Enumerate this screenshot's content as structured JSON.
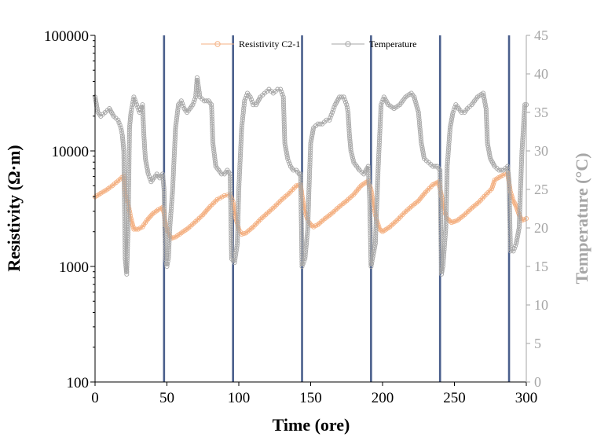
{
  "chart_data": {
    "type": "line",
    "title": "",
    "xlabel": "Time (ore)",
    "ylabel": "Resistivity (Ω·m)",
    "y2label": "Temperature (°C)",
    "xlim": [
      0,
      300
    ],
    "ylim": [
      100,
      100000
    ],
    "y2lim": [
      0,
      45
    ],
    "yscale": "log",
    "grid": false,
    "legend_position": "top-center",
    "x_ticks": [
      0,
      50,
      100,
      150,
      200,
      250,
      300
    ],
    "x_tick_labels": [
      "0",
      "50",
      "100",
      "150",
      "200",
      "250",
      "300"
    ],
    "y_ticks": [
      100,
      1000,
      10000,
      100000
    ],
    "y_tick_labels": [
      "100",
      "1000",
      "10000",
      "100000"
    ],
    "y2_ticks": [
      0,
      5,
      10,
      15,
      20,
      25,
      30,
      35,
      40,
      45
    ],
    "y2_tick_labels": [
      "0",
      "5",
      "10",
      "15",
      "20",
      "25",
      "30",
      "35",
      "40",
      "45"
    ],
    "vertical_lines": [
      {
        "x": 48,
        "color": "#4a5f8c"
      },
      {
        "x": 96,
        "color": "#4a5f8c"
      },
      {
        "x": 144,
        "color": "#4a5f8c"
      },
      {
        "x": 192,
        "color": "#4a5f8c"
      },
      {
        "x": 240,
        "color": "#4a5f8c"
      },
      {
        "x": 288,
        "color": "#4a5f8c"
      }
    ],
    "series": [
      {
        "name": "Resistivity C2-1",
        "axis": "left",
        "color": "#f4b183",
        "points": [
          [
            0,
            4000
          ],
          [
            4,
            4300
          ],
          [
            8,
            4600
          ],
          [
            12,
            5000
          ],
          [
            16,
            5500
          ],
          [
            20,
            6100
          ],
          [
            21,
            4200
          ],
          [
            23,
            3500
          ],
          [
            25,
            2600
          ],
          [
            27,
            2100
          ],
          [
            30,
            2100
          ],
          [
            33,
            2200
          ],
          [
            36,
            2500
          ],
          [
            40,
            2850
          ],
          [
            44,
            3100
          ],
          [
            47,
            3250
          ],
          [
            48,
            2900
          ],
          [
            49,
            2300
          ],
          [
            51,
            1950
          ],
          [
            53,
            1750
          ],
          [
            56,
            1800
          ],
          [
            60,
            1950
          ],
          [
            65,
            2150
          ],
          [
            70,
            2450
          ],
          [
            75,
            2800
          ],
          [
            80,
            3300
          ],
          [
            85,
            3800
          ],
          [
            90,
            4100
          ],
          [
            94,
            4200
          ],
          [
            96,
            3600
          ],
          [
            98,
            2600
          ],
          [
            100,
            2100
          ],
          [
            102,
            1900
          ],
          [
            105,
            1950
          ],
          [
            110,
            2200
          ],
          [
            115,
            2550
          ],
          [
            120,
            2900
          ],
          [
            125,
            3300
          ],
          [
            130,
            3800
          ],
          [
            135,
            4300
          ],
          [
            140,
            5000
          ],
          [
            143,
            5100
          ],
          [
            144,
            4100
          ],
          [
            146,
            3000
          ],
          [
            148,
            2500
          ],
          [
            150,
            2300
          ],
          [
            152,
            2200
          ],
          [
            155,
            2300
          ],
          [
            160,
            2600
          ],
          [
            165,
            2900
          ],
          [
            170,
            3300
          ],
          [
            175,
            3700
          ],
          [
            180,
            4200
          ],
          [
            185,
            5000
          ],
          [
            190,
            5500
          ],
          [
            192,
            4600
          ],
          [
            194,
            3200
          ],
          [
            196,
            2500
          ],
          [
            198,
            2100
          ],
          [
            200,
            2000
          ],
          [
            205,
            2200
          ],
          [
            210,
            2500
          ],
          [
            215,
            2900
          ],
          [
            220,
            3300
          ],
          [
            225,
            3700
          ],
          [
            230,
            4400
          ],
          [
            235,
            5100
          ],
          [
            239,
            5400
          ],
          [
            241,
            4100
          ],
          [
            243,
            3000
          ],
          [
            245,
            2600
          ],
          [
            248,
            2400
          ],
          [
            252,
            2500
          ],
          [
            257,
            2800
          ],
          [
            262,
            3200
          ],
          [
            267,
            3600
          ],
          [
            272,
            4200
          ],
          [
            276,
            4700
          ],
          [
            278,
            5600
          ],
          [
            282,
            6000
          ],
          [
            285,
            6300
          ],
          [
            287,
            6400
          ],
          [
            289,
            4400
          ],
          [
            291,
            3700
          ],
          [
            293,
            3300
          ],
          [
            295,
            2800
          ],
          [
            297,
            2500
          ],
          [
            300,
            2600
          ]
        ]
      },
      {
        "name": "Temperature",
        "axis": "right",
        "color": "#a6a6a6",
        "points": [
          [
            0,
            37
          ],
          [
            2,
            35
          ],
          [
            4,
            34.5
          ],
          [
            7,
            35
          ],
          [
            10,
            35.5
          ],
          [
            13,
            34.5
          ],
          [
            16,
            34
          ],
          [
            18,
            33
          ],
          [
            19,
            32
          ],
          [
            20,
            30
          ],
          [
            21,
            16
          ],
          [
            22,
            14
          ],
          [
            23,
            20
          ],
          [
            24,
            33
          ],
          [
            25,
            35
          ],
          [
            26,
            36
          ],
          [
            27,
            37
          ],
          [
            29,
            36
          ],
          [
            31,
            35
          ],
          [
            33,
            36
          ],
          [
            34,
            32
          ],
          [
            35,
            29
          ],
          [
            37,
            27
          ],
          [
            39,
            26
          ],
          [
            41,
            26.5
          ],
          [
            43,
            27
          ],
          [
            45,
            26.5
          ],
          [
            47,
            27
          ],
          [
            48,
            25
          ],
          [
            49,
            16
          ],
          [
            50,
            15
          ],
          [
            51,
            16
          ],
          [
            52,
            20
          ],
          [
            54,
            25
          ],
          [
            56,
            33
          ],
          [
            58,
            36
          ],
          [
            60,
            36.5
          ],
          [
            62,
            35.5
          ],
          [
            64,
            35
          ],
          [
            66,
            35.5
          ],
          [
            68,
            36
          ],
          [
            70,
            37
          ],
          [
            71,
            39.5
          ],
          [
            73,
            37
          ],
          [
            76,
            36.5
          ],
          [
            79,
            36.5
          ],
          [
            81,
            36
          ],
          [
            82,
            31
          ],
          [
            84,
            28
          ],
          [
            86,
            27.5
          ],
          [
            88,
            27
          ],
          [
            90,
            27
          ],
          [
            92,
            27.5
          ],
          [
            94,
            27
          ],
          [
            95,
            16
          ],
          [
            97,
            15.5
          ],
          [
            99,
            18
          ],
          [
            100,
            25
          ],
          [
            102,
            33
          ],
          [
            104,
            36.5
          ],
          [
            106,
            37.5
          ],
          [
            108,
            37
          ],
          [
            110,
            36
          ],
          [
            112,
            36
          ],
          [
            115,
            37
          ],
          [
            118,
            37.5
          ],
          [
            121,
            38
          ],
          [
            124,
            37.5
          ],
          [
            127,
            38
          ],
          [
            129,
            38
          ],
          [
            131,
            37
          ],
          [
            132,
            31
          ],
          [
            134,
            29
          ],
          [
            136,
            28
          ],
          [
            138,
            27.5
          ],
          [
            140,
            27.5
          ],
          [
            142,
            27
          ],
          [
            143,
            27
          ],
          [
            144,
            15
          ],
          [
            146,
            16
          ],
          [
            148,
            20
          ],
          [
            149,
            26
          ],
          [
            150,
            31
          ],
          [
            152,
            33
          ],
          [
            155,
            33.5
          ],
          [
            158,
            33.5
          ],
          [
            161,
            34
          ],
          [
            163,
            34
          ],
          [
            165,
            35
          ],
          [
            167,
            36
          ],
          [
            170,
            37
          ],
          [
            173,
            37
          ],
          [
            175,
            36
          ],
          [
            176,
            35
          ],
          [
            177,
            32
          ],
          [
            178,
            30
          ],
          [
            180,
            28.5
          ],
          [
            182,
            28
          ],
          [
            184,
            27.5
          ],
          [
            187,
            27
          ],
          [
            190,
            28
          ],
          [
            191,
            24
          ],
          [
            192,
            15
          ],
          [
            193,
            16
          ],
          [
            195,
            18
          ],
          [
            197,
            28
          ],
          [
            199,
            36
          ],
          [
            201,
            37
          ],
          [
            204,
            36
          ],
          [
            208,
            35.5
          ],
          [
            212,
            36
          ],
          [
            216,
            37
          ],
          [
            220,
            37.5
          ],
          [
            222,
            37
          ],
          [
            225,
            35
          ],
          [
            227,
            31
          ],
          [
            229,
            29
          ],
          [
            232,
            28.5
          ],
          [
            235,
            28
          ],
          [
            238,
            28
          ],
          [
            240,
            27.5
          ],
          [
            241,
            14
          ],
          [
            242,
            15
          ],
          [
            244,
            20
          ],
          [
            245,
            28
          ],
          [
            247,
            33
          ],
          [
            249,
            35
          ],
          [
            251,
            36
          ],
          [
            253,
            35.5
          ],
          [
            255,
            35
          ],
          [
            257,
            35
          ],
          [
            259,
            35.5
          ],
          [
            262,
            36
          ],
          [
            266,
            37
          ],
          [
            270,
            37.5
          ],
          [
            272,
            35.5
          ],
          [
            273,
            31
          ],
          [
            275,
            29
          ],
          [
            278,
            28
          ],
          [
            281,
            27.5
          ],
          [
            284,
            27.5
          ],
          [
            287,
            28
          ],
          [
            288,
            26
          ],
          [
            289,
            17
          ],
          [
            291,
            17
          ],
          [
            293,
            18
          ],
          [
            295,
            20
          ],
          [
            297,
            30
          ],
          [
            299,
            36
          ],
          [
            300,
            36
          ]
        ]
      }
    ]
  }
}
